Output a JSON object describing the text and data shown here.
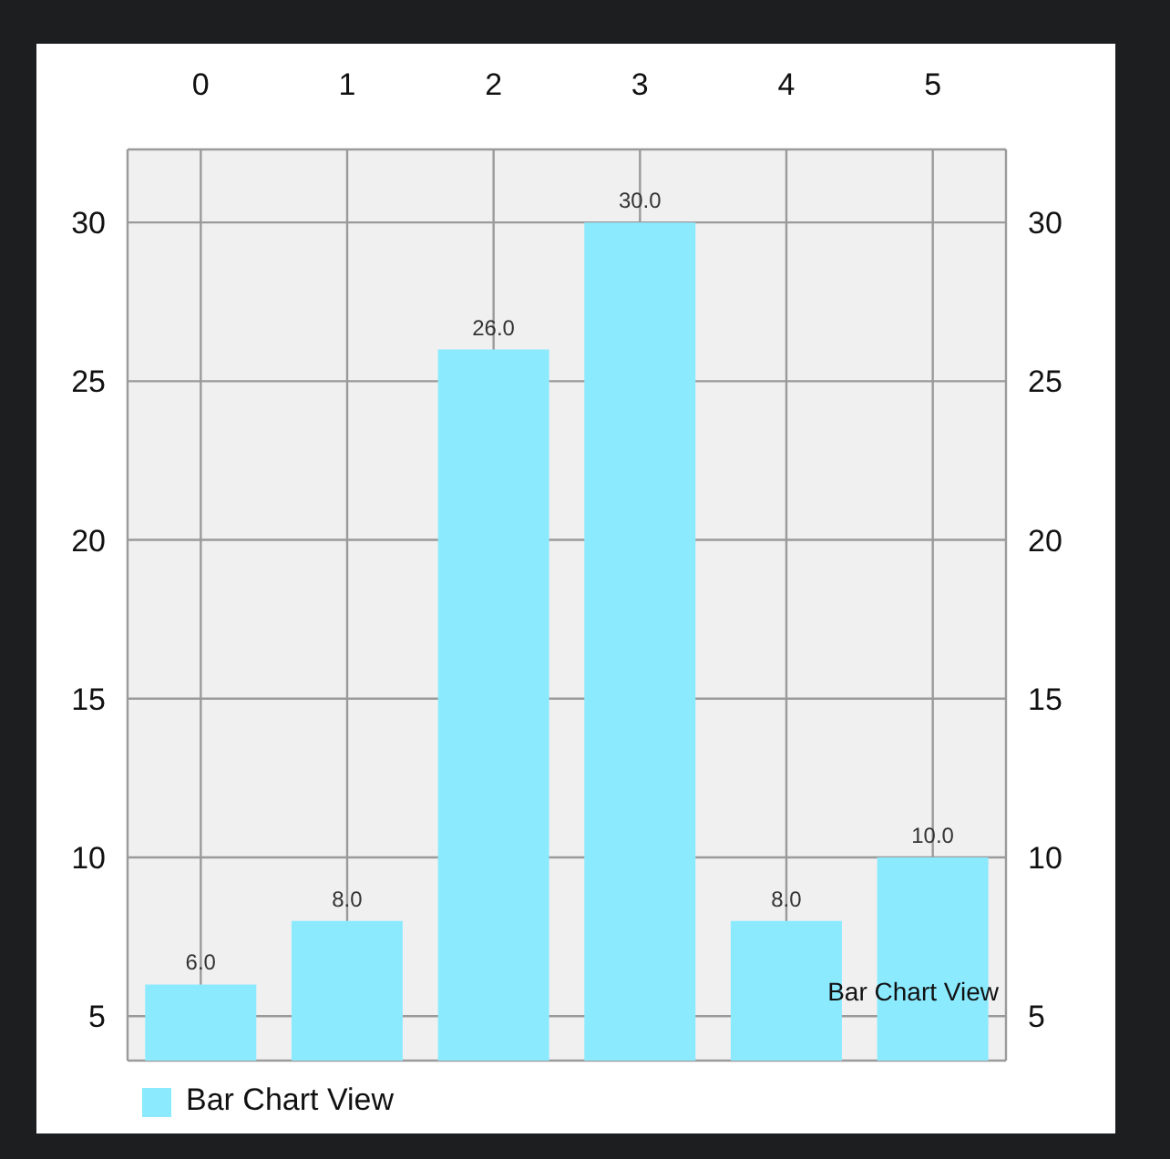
{
  "chart_data": {
    "type": "bar",
    "categories": [
      "0",
      "1",
      "2",
      "3",
      "4",
      "5"
    ],
    "series": [
      {
        "name": "Bar Chart View",
        "color": "#8ceaff",
        "values": [
          6,
          8,
          26,
          30,
          8,
          10
        ]
      }
    ],
    "value_labels": [
      "6.0",
      "8.0",
      "26.0",
      "30.0",
      "8.0",
      "10.0"
    ],
    "ylim": [
      3.6,
      32.3
    ],
    "yticks": [
      5,
      10,
      15,
      20,
      25,
      30
    ],
    "y2lim": [
      3.6,
      32.3
    ],
    "y2ticks": [
      5,
      10,
      15,
      20,
      25,
      30
    ],
    "grid": true,
    "legend": "bottom left",
    "annotations": [
      "Bar Chart View"
    ]
  }
}
